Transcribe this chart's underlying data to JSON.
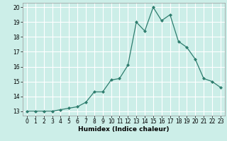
{
  "xlabel": "Humidex (Indice chaleur)",
  "x": [
    0,
    1,
    2,
    3,
    4,
    5,
    6,
    7,
    8,
    9,
    10,
    11,
    12,
    13,
    14,
    15,
    16,
    17,
    18,
    19,
    20,
    21,
    22,
    23
  ],
  "y": [
    13.0,
    13.0,
    13.0,
    13.0,
    13.1,
    13.2,
    13.3,
    13.6,
    14.3,
    14.3,
    15.1,
    15.2,
    16.1,
    19.0,
    18.4,
    20.0,
    19.1,
    19.5,
    17.7,
    17.3,
    16.5,
    15.2,
    15.0,
    14.6
  ],
  "line_color": "#2e7d6e",
  "marker": "D",
  "marker_size": 2,
  "bg_color": "#cceee8",
  "grid_color": "#ffffff",
  "ylim": [
    12.7,
    20.3
  ],
  "xlim": [
    -0.5,
    23.5
  ],
  "yticks": [
    13,
    14,
    15,
    16,
    17,
    18,
    19,
    20
  ],
  "xticks": [
    0,
    1,
    2,
    3,
    4,
    5,
    6,
    7,
    8,
    9,
    10,
    11,
    12,
    13,
    14,
    15,
    16,
    17,
    18,
    19,
    20,
    21,
    22,
    23
  ],
  "label_fontsize": 6.5,
  "tick_fontsize": 5.5
}
